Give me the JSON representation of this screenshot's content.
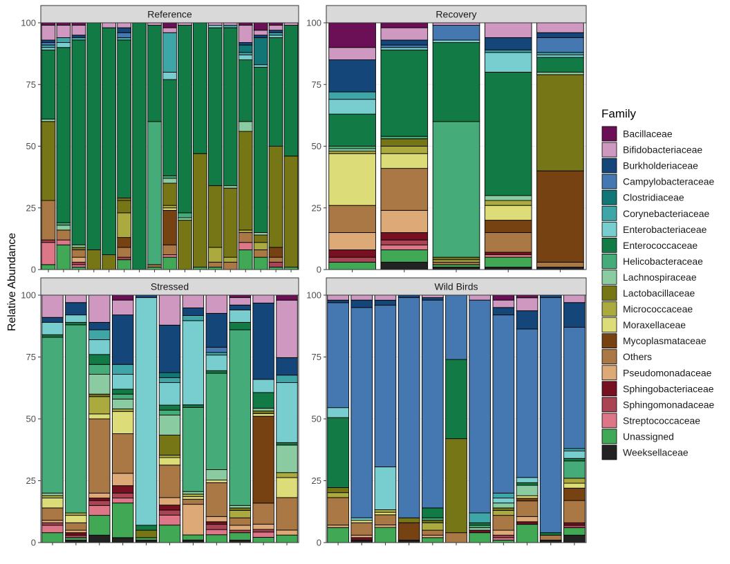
{
  "chart_data": {
    "type": "bar",
    "stacked": true,
    "ylabel": "Relative Abundance",
    "xlabel": "",
    "ylim": [
      0,
      100
    ],
    "yticks": [
      0,
      25,
      50,
      75,
      100
    ],
    "facets": [
      "Reference",
      "Recovery",
      "Stressed",
      "Wild Birds"
    ],
    "legend": {
      "title": "Family",
      "placement": "right",
      "entries": [
        {
          "name": "Bacillaceae",
          "color": "#6B1057"
        },
        {
          "name": "Bifidobacteriaceae",
          "color": "#CE98C0"
        },
        {
          "name": "Burkholderiaceae",
          "color": "#15467A"
        },
        {
          "name": "Campylobacteraceae",
          "color": "#4577B0"
        },
        {
          "name": "Clostridiaceae",
          "color": "#127576"
        },
        {
          "name": "Corynebacteriaceae",
          "color": "#3FA6A8"
        },
        {
          "name": "Enterobacteriaceae",
          "color": "#78CDCE"
        },
        {
          "name": "Enterococcaceae",
          "color": "#117A45"
        },
        {
          "name": "Helicobacteraceae",
          "color": "#44AB79"
        },
        {
          "name": "Lachnospiraceae",
          "color": "#8ACBA2"
        },
        {
          "name": "Lactobacillaceae",
          "color": "#767616"
        },
        {
          "name": "Micrococcaceae",
          "color": "#AAAA3E"
        },
        {
          "name": "Moraxellaceae",
          "color": "#DCDC78"
        },
        {
          "name": "Mycoplasmataceae",
          "color": "#774212"
        },
        {
          "name": "Others",
          "color": "#AA7845"
        },
        {
          "name": "Pseudomonadaceae",
          "color": "#DDAA77"
        },
        {
          "name": "Sphingobacteriaceae",
          "color": "#771122"
        },
        {
          "name": "Sphingomonadaceae",
          "color": "#AA4455"
        },
        {
          "name": "Streptococcaceae",
          "color": "#DD7788"
        },
        {
          "name": "Unassigned",
          "color": "#41A856"
        },
        {
          "name": "Weeksellaceae",
          "color": "#222222"
        }
      ]
    },
    "panels": [
      {
        "facet": "Reference",
        "samples": [
          {
            "Unassigned": 2,
            "Streptococcaceae": 9,
            "Sphingomonadaceae": 1,
            "Others": 16,
            "Lactobacillaceae": 32,
            "Enterococcaceae": 28,
            "Lachnospiraceae": 1,
            "Enterobacteriaceae": 1,
            "Corynebacteriaceae": 1,
            "Burkholderiaceae": 1,
            "Campylobacteraceae": 1,
            "Bifidobacteriaceae": 6,
            "Bacillaceae": 1
          },
          {
            "Unassigned": 10,
            "Streptococcaceae": 2,
            "Others": 4,
            "Lachnospiraceae": 2,
            "Helicobacteraceae": 1,
            "Enterococcaceae": 71,
            "Enterobacteriaceae": 2,
            "Corynebacteriaceae": 2,
            "Bifidobacteriaceae": 5,
            "Bacillaceae": 1
          },
          {
            "Unassigned": 1,
            "Streptococcaceae": 1,
            "Sphingomonadaceae": 1,
            "Pseudomonadaceae": 2,
            "Others": 3,
            "Lactobacillaceae": 1,
            "Lachnospiraceae": 1,
            "Enterococcaceae": 83,
            "Corynebacteriaceae": 1,
            "Burkholderiaceae": 1,
            "Bifidobacteriaceae": 4,
            "Bacillaceae": 1
          },
          {
            "Lactobacillaceae": 8,
            "Enterococcaceae": 92
          },
          {
            "Lactobacillaceae": 6,
            "Enterococcaceae": 92,
            "Bifidobacteriaceae": 2
          },
          {
            "Unassigned": 4,
            "Sphingomonadaceae": 1,
            "Others": 4,
            "Mycoplasmataceae": 4,
            "Lactobacillaceae": 5,
            "Micrococcaceae": 10,
            "Lactobacillaceae_2": 1,
            "Enterococcaceae": 64,
            "Corynebacteriaceae": 1,
            "Campylobacteraceae": 2,
            "Burkholderiaceae": 2,
            "Bifidobacteriaceae": 2
          },
          {
            "Enterococcaceae": 100
          },
          {
            "Unassigned": 1,
            "Others": 1,
            "Helicobacteraceae": 58,
            "Enterococcaceae": 39,
            "Bifidobacteriaceae": 1
          },
          {
            "Unassigned": 5,
            "Streptococcaceae": 1,
            "Others": 4,
            "Mycoplasmataceae": 14,
            "Moraxellaceae": 1,
            "Micrococcaceae": 1,
            "Lactobacillaceae": 9,
            "Lachnospiraceae": 2,
            "Helicobacteraceae": 1,
            "Enterococcaceae": 39,
            "Enterobacteriaceae": 3,
            "Corynebacteriaceae": 16,
            "Bifidobacteriaceae": 2,
            "Bacillaceae": 2
          },
          {
            "Lactobacillaceae": 20,
            "Lachnospiraceae": 1,
            "Helicobacteraceae": 2,
            "Enterococcaceae": 76,
            "Bifidobacteriaceae": 1
          },
          {
            "Unassigned": 1,
            "Lactobacillaceae": 46,
            "Enterococcaceae": 53
          },
          {
            "Unassigned": 1,
            "Others": 2,
            "Micrococcaceae": 6,
            "Lactobacillaceae": 25,
            "Enterobacteriaceae": 1,
            "Enterococcaceae": 64,
            "Bifidobacteriaceae": 1
          },
          {
            "Others": 3,
            "Micrococcaceae": 2,
            "Lactobacillaceae": 28,
            "Lachnospiraceae": 1,
            "Enterococcaceae": 64,
            "Corynebacteriaceae": 1,
            "Bifidobacteriaceae": 1
          },
          {
            "Unassigned": 8,
            "Streptococcaceae": 3,
            "Others": 4,
            "Micrococcaceae": 1,
            "Lactobacillaceae": 40,
            "Lachnospiraceae": 4,
            "Enterococcaceae": 25,
            "Enterobacteriaceae": 2,
            "Corynebacteriaceae": 1,
            "Clostridiaceae": 3,
            "Burkholderiaceae": 1,
            "Bifidobacteriaceae": 7,
            "Bacillaceae": 1
          },
          {
            "Unassigned": 5,
            "Others": 3,
            "Micrococcaceae": 3,
            "Lactobacillaceae": 3,
            "Lachnospiraceae": 1,
            "Enterococcaceae": 67,
            "Enterobacteriaceae": 1,
            "Clostridiaceae": 11,
            "Burkholderiaceae": 1,
            "Bifidobacteriaceae": 2,
            "Bacillaceae": 3
          },
          {
            "Unassigned": 1,
            "Sphingomonadaceae": 2,
            "Others": 2,
            "Mycoplasmataceae": 4,
            "Lactobacillaceae": 41,
            "Enterococcaceae": 44,
            "Enterobacteriaceae": 1,
            "Corynebacteriaceae": 1,
            "Burkholderiaceae": 1,
            "Bifidobacteriaceae": 2,
            "Bacillaceae": 1
          },
          {
            "Unassigned": 1,
            "Lactobacillaceae": 45,
            "Enterococcaceae": 53,
            "Bifidobacteriaceae": 1
          }
        ]
      },
      {
        "facet": "Recovery",
        "samples": [
          {
            "Unassigned": 3,
            "Sphingomonadaceae": 2,
            "Sphingobacteriaceae": 3,
            "Pseudomonadaceae": 7,
            "Others": 11,
            "Moraxellaceae": 21,
            "Micrococcaceae": 1,
            "Lachnospiraceae": 1,
            "Helicobacteraceae": 1,
            "Enterococcaceae": 13,
            "Enterobacteriaceae": 6,
            "Corynebacteriaceae": 3,
            "Burkholderiaceae": 13,
            "Bifidobacteriaceae": 5,
            "Bacillaceae": 10
          },
          {
            "Weeksellaceae": 3,
            "Unassigned": 5,
            "Streptococcaceae": 2,
            "Sphingomonadaceae": 2,
            "Sphingobacteriaceae": 3,
            "Pseudomonadaceae": 9,
            "Others": 17,
            "Moraxellaceae": 6,
            "Micrococcaceae": 3,
            "Lactobacillaceae": 3,
            "Helicobacteraceae": 1,
            "Enterococcaceae": 35,
            "Enterobacteriaceae": 1,
            "Burkholderiaceae": 2,
            "Campylobacteraceae": 1,
            "Bifidobacteriaceae": 5,
            "Bacillaceae": 2
          },
          {
            "Weeksellaceae": 1,
            "Unassigned": 1,
            "Others": 1,
            "Micrococcaceae": 1,
            "Lactobacillaceae": 1,
            "Helicobacteraceae": 55,
            "Enterococcaceae": 32,
            "Enterobacteriaceae": 1,
            "Campylobacteraceae": 6,
            "Bifidobacteriaceae": 1
          },
          {
            "Weeksellaceae": 1,
            "Unassigned": 4,
            "Streptococcaceae": 1,
            "Sphingobacteriaceae": 1,
            "Others": 8,
            "Mycoplasmataceae": 5,
            "Moraxellaceae": 6,
            "Micrococcaceae": 2,
            "Lachnospiraceae": 2,
            "Enterococcaceae": 50,
            "Enterobacteriaceae": 8,
            "Corynebacteriaceae": 1,
            "Burkholderiaceae": 5,
            "Bifidobacteriaceae": 6
          },
          {
            "Weeksellaceae": 1,
            "Others": 2,
            "Mycoplasmataceae": 37,
            "Lactobacillaceae": 39,
            "Lachnospiraceae": 1,
            "Enterococcaceae": 6,
            "Enterobacteriaceae": 1,
            "Corynebacteriaceae": 1,
            "Burkholderiaceae": 2,
            "Campylobacteraceae": 6,
            "Bifidobacteriaceae": 4
          }
        ]
      },
      {
        "facet": "Stressed",
        "samples": [
          {
            "Unassigned": 4,
            "Streptococcaceae": 3,
            "Sphingomonadaceae": 1,
            "Others": 5,
            "Pseudomonadaceae": 1,
            "Moraxellaceae": 4,
            "Micrococcaceae": 1,
            "Lachnospiraceae": 1,
            "Helicobacteraceae": 63,
            "Enterococcaceae": 1,
            "Enterobacteriaceae": 5,
            "Burkholderiaceae": 2,
            "Bifidobacteriaceae": 9
          },
          {
            "Unassigned": 1,
            "Weeksellaceae": 1,
            "Sphingobacteriaceae": 1,
            "Sphingomonadaceae": 1,
            "Others": 3,
            "Pseudomonadaceae": 1,
            "Moraxellaceae": 3,
            "Micrococcaceae": 1,
            "Helicobacteraceae": 76,
            "Enterococcaceae": 1,
            "Enterobacteriaceae": 3,
            "Burkholderiaceae": 5,
            "Bifidobacteriaceae": 3
          },
          {
            "Weeksellaceae": 3,
            "Unassigned": 8,
            "Streptococcaceae": 4,
            "Sphingomonadaceae": 2,
            "Sphingobacteriaceae": 1,
            "Pseudomonadaceae": 2,
            "Others": 30,
            "Moraxellaceae": 2,
            "Micrococcaceae": 7,
            "Lactobacillaceae": 1,
            "Lachnospiraceae": 8,
            "Helicobacteraceae": 4,
            "Enterococcaceae": 4,
            "Enterobacteriaceae": 6,
            "Corynebacteriaceae": 4,
            "Burkholderiaceae": 3,
            "Bifidobacteriaceae": 11
          },
          {
            "Weeksellaceae": 2,
            "Unassigned": 14,
            "Streptococcaceae": 2,
            "Sphingomonadaceae": 2,
            "Sphingobacteriaceae": 3,
            "Pseudomonadaceae": 5,
            "Others": 16,
            "Moraxellaceae": 9,
            "Micrococcaceae": 1,
            "Lachnospiraceae": 4,
            "Helicobacteraceae": 2,
            "Enterococcaceae": 2,
            "Enterobacteriaceae": 6,
            "Corynebacteriaceae": 4,
            "Burkholderiaceae": 20,
            "Bifidobacteriaceae": 6,
            "Bacillaceae": 2
          },
          {
            "Weeksellaceae": 1,
            "Unassigned": 1,
            "Lactobacillaceae": 3,
            "Enterococcaceae": 2,
            "Enterobacteriaceae": 92,
            "Burkholderiaceae": 1
          },
          {
            "Unassigned": 7,
            "Streptococcaceae": 4,
            "Sphingomonadaceae": 2,
            "Sphingobacteriaceae": 2,
            "Pseudomonadaceae": 3,
            "Others": 13,
            "Moraxellaceae": 3,
            "Micrococcaceae": 1,
            "Lactobacillaceae": 8,
            "Lachnospiraceae": 8,
            "Helicobacteraceae": 2,
            "Enterococcaceae": 2,
            "Enterobacteriaceae": 9,
            "Corynebacteriaceae": 2,
            "Clostridiaceae": 2,
            "Burkholderiaceae": 19,
            "Bifidobacteriaceae": 12
          },
          {
            "Unassigned": 2,
            "Weeksellaceae": 1,
            "Pseudomonadaceae": 12,
            "Others": 2,
            "Moraxellaceae": 1,
            "Micrococcaceae": 1,
            "Lachnospiraceae": 1,
            "Helicobacteraceae": 33,
            "Enterococcaceae": 1,
            "Enterobacteriaceae": 33,
            "Corynebacteriaceae": 2,
            "Burkholderiaceae": 3,
            "Bifidobacteriaceae": 5
          },
          {
            "Unassigned": 3,
            "Streptococcaceae": 2,
            "Sphingomonadaceae": 2,
            "Sphingobacteriaceae": 1,
            "Pseudomonadaceae": 2,
            "Others": 13,
            "Moraxellaceae": 1,
            "Lachnospiraceae": 4,
            "Helicobacteraceae": 37,
            "Enterococcaceae": 1,
            "Enterobacteriaceae": 6,
            "Corynebacteriaceae": 1,
            "Campylobacteraceae": 2,
            "Burkholderiaceae": 13,
            "Bifidobacteriaceae": 7
          },
          {
            "Unassigned": 3,
            "Weeksellaceae": 1,
            "Sphingomonadaceae": 1,
            "Pseudomonadaceae": 2,
            "Others": 3,
            "Micrococcaceae": 3,
            "Lactobacillaceae": 1,
            "Lachnospiraceae": 1,
            "Helicobacteraceae": 71,
            "Enterococcaceae": 3,
            "Enterobacteriaceae": 5,
            "Burkholderiaceae": 2,
            "Bifidobacteriaceae": 3,
            "Bacillaceae": 1
          },
          {
            "Unassigned": 2,
            "Streptococcaceae": 2,
            "Sphingomonadaceae": 1,
            "Pseudomonadaceae": 2,
            "Others": 8,
            "Mycoplasmataceae": 33,
            "Moraxellaceae": 1,
            "Lactobacillaceae": 1,
            "Lachnospiraceae": 1,
            "Enterococcaceae": 6,
            "Enterobacteriaceae": 5,
            "Burkholderiaceae": 29,
            "Bifidobacteriaceae": 3
          },
          {
            "Unassigned": 3,
            "Pseudomonadaceae": 2,
            "Others": 13,
            "Moraxellaceae": 8,
            "Micrococcaceae": 2,
            "Lachnospiraceae": 11,
            "Enterococcaceae": 1,
            "Enterobacteriaceae": 24,
            "Corynebacteriaceae": 3,
            "Burkholderiaceae": 7,
            "Bifidobacteriaceae": 23,
            "Bacillaceae": 2
          }
        ]
      },
      {
        "facet": "Wild Birds",
        "samples": [
          {
            "Unassigned": 6,
            "Others": 11,
            "Pseudomonadaceae": 1,
            "Micrococcaceae": 2,
            "Lactobacillaceae": 2,
            "Enterococcaceae": 28,
            "Enterobacteriaceae": 4,
            "Campylobacteraceae": 42,
            "Burkholderiaceae": 1,
            "Bifidobacteriaceae": 2
          },
          {
            "Weeksellaceae": 1,
            "Sphingobacteriaceae": 1,
            "Others": 5,
            "Pseudomonadaceae": 1,
            "Moraxellaceae": 1,
            "Enterobacteriaceae": 1,
            "Campylobacteraceae": 85,
            "Burkholderiaceae": 3,
            "Bifidobacteriaceae": 2
          },
          {
            "Unassigned": 6,
            "Others": 4,
            "Pseudomonadaceae": 1,
            "Moraxellaceae": 1,
            "Micrococcaceae": 1,
            "Enterobacteriaceae": 17,
            "Campylobacteraceae": 64,
            "Burkholderiaceae": 2,
            "Bifidobacteriaceae": 2
          },
          {
            "Weeksellaceae": 1,
            "Mycoplasmataceae": 7,
            "Lactobacillaceae": 2,
            "Campylobacteraceae": 89,
            "Burkholderiaceae": 1
          },
          {
            "Unassigned": 2,
            "Pseudomonadaceae": 1,
            "Others": 2,
            "Micrococcaceae": 3,
            "Lactobacillaceae": 1,
            "Enterococcaceae": 4,
            "Helicobacteraceae": 1,
            "Campylobacteraceae": 84,
            "Burkholderiaceae": 1,
            "Bifidobacteriaceae": 1
          },
          {
            "Others": 4,
            "Lactobacillaceae": 38,
            "Enterococcaceae": 32,
            "Campylobacteraceae": 26
          },
          {
            "Unassigned": 4,
            "Sphingobacteriaceae": 1,
            "Lachnospiraceae": 1,
            "Helicobacteraceae": 1,
            "Enterococcaceae": 1,
            "Corynebacteriaceae": 4,
            "Campylobacteraceae": 86,
            "Bifidobacteriaceae": 2
          },
          {
            "Unassigned": 1,
            "Streptococcaceae": 1,
            "Sphingomonadaceae": 1,
            "Others": 6,
            "Pseudomonadaceae": 2,
            "Micrococcaceae": 2,
            "Lactobacillaceae": 1,
            "Lachnospiraceae": 2,
            "Enterobacteriaceae": 2,
            "Corynebacteriaceae": 2,
            "Campylobacteraceae": 72,
            "Burkholderiaceae": 3,
            "Bifidobacteriaceae": 3,
            "Bacillaceae": 2
          },
          {
            "Unassigned": 7,
            "Others": 6,
            "Sphingobacteriaceae": 1,
            "Pseudomonadaceae": 2,
            "Moraxellaceae": 1,
            "Mycoplasmataceae": 1,
            "Lachnospiraceae": 4,
            "Enterococcaceae": 1,
            "Enterobacteriaceae": 2,
            "Campylobacteraceae": 57,
            "Burkholderiaceae": 7,
            "Bifidobacteriaceae": 5,
            "Bacillaceae": 1
          },
          {
            "Weeksellaceae": 1,
            "Others": 2,
            "Enterococcaceae": 1,
            "Campylobacteraceae": 95,
            "Burkholderiaceae": 1
          },
          {
            "Weeksellaceae": 3,
            "Unassigned": 3,
            "Sphingobacteriaceae": 1,
            "Sphingomonadaceae": 1,
            "Others": 9,
            "Mycoplasmataceae": 5,
            "Micrococcaceae": 2,
            "Moraxellaceae": 2,
            "Helicobacteraceae": 7,
            "Enterococcaceae": 1,
            "Enterobacteriaceae": 3,
            "Corynebacteriaceae": 1,
            "Campylobacteraceae": 49,
            "Burkholderiaceae": 10,
            "Bifidobacteriaceae": 3
          }
        ]
      }
    ]
  }
}
